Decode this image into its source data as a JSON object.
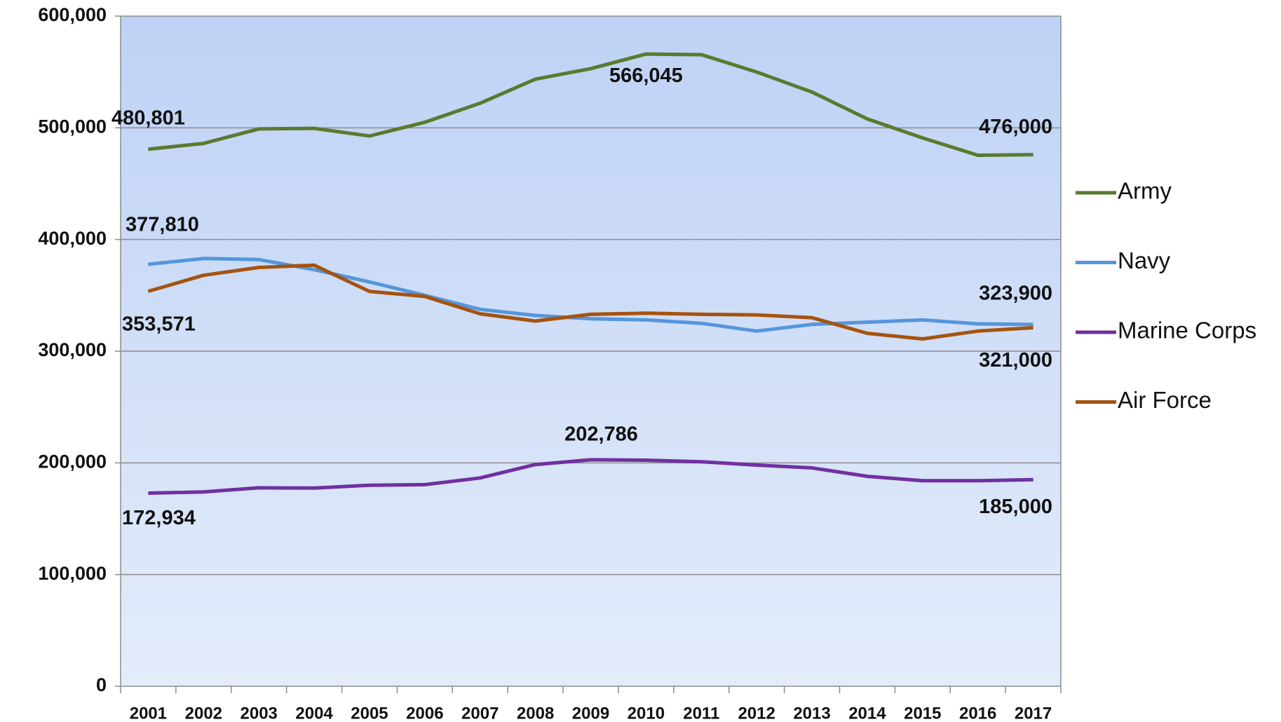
{
  "chart_data": {
    "type": "line",
    "categories": [
      "2001",
      "2002",
      "2003",
      "2004",
      "2005",
      "2006",
      "2007",
      "2008",
      "2009",
      "2010",
      "2011",
      "2012",
      "2013",
      "2014",
      "2015",
      "2016",
      "2017"
    ],
    "series": [
      {
        "name": "Army",
        "color": "#5a7a2e",
        "values": [
          480801,
          486000,
          499000,
          499500,
          492700,
          505000,
          522000,
          543600,
          553000,
          566045,
          565500,
          550000,
          532000,
          508000,
          491000,
          475400,
          476000
        ],
        "value_labels": [
          "480,801",
          null,
          null,
          null,
          null,
          null,
          null,
          null,
          null,
          "566,045",
          null,
          null,
          null,
          null,
          null,
          null,
          "476,000"
        ]
      },
      {
        "name": "Navy",
        "color": "#5596dc",
        "values": [
          377810,
          383000,
          382000,
          373000,
          362000,
          350000,
          337500,
          332000,
          329000,
          328000,
          325000,
          318000,
          324000,
          326000,
          328000,
          324500,
          323900
        ],
        "value_labels": [
          "377,810",
          null,
          null,
          null,
          null,
          null,
          null,
          null,
          null,
          null,
          null,
          null,
          null,
          null,
          null,
          null,
          "323,900"
        ]
      },
      {
        "name": "Marine Corps",
        "color": "#7030a0",
        "values": [
          172934,
          174000,
          177700,
          177500,
          180000,
          180500,
          186500,
          198500,
          202786,
          202400,
          201000,
          198000,
          195500,
          188000,
          184000,
          184000,
          185000
        ],
        "value_labels": [
          "172,934",
          null,
          null,
          null,
          null,
          null,
          null,
          null,
          "202,786",
          null,
          null,
          null,
          null,
          null,
          null,
          null,
          "185,000"
        ]
      },
      {
        "name": "Air Force",
        "color": "#a5530f",
        "values": [
          353571,
          368000,
          375000,
          377000,
          353500,
          349000,
          333500,
          327000,
          333000,
          334000,
          333000,
          332500,
          330000,
          316000,
          311000,
          318000,
          321000
        ],
        "value_labels": [
          "353,571",
          null,
          null,
          null,
          null,
          null,
          null,
          null,
          null,
          null,
          null,
          null,
          null,
          null,
          null,
          null,
          "321,000"
        ]
      }
    ],
    "ylim": [
      0,
      600000
    ],
    "yticks": [
      {
        "value": 0,
        "label": "0"
      },
      {
        "value": 100000,
        "label": "100,000"
      },
      {
        "value": 200000,
        "label": "200,000"
      },
      {
        "value": 300000,
        "label": "300,000"
      },
      {
        "value": 400000,
        "label": "400,000"
      },
      {
        "value": 500000,
        "label": "500,000"
      },
      {
        "value": 600000,
        "label": "600,000"
      }
    ],
    "grid": true,
    "legend": "right"
  }
}
